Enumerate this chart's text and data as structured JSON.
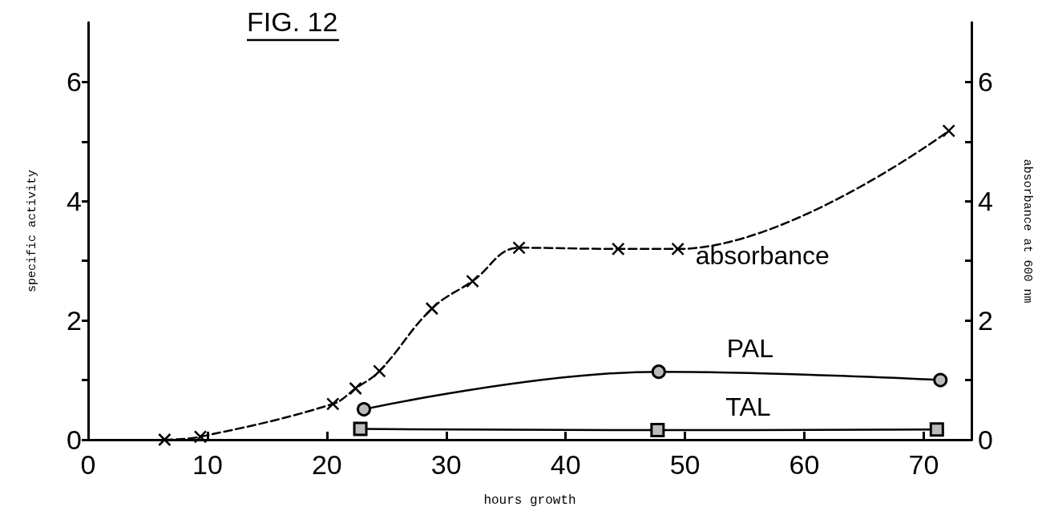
{
  "chart_data": {
    "type": "line",
    "title": "FIG. 12",
    "xlabel": "hours growth",
    "ylabel": "specific activity",
    "y2label": "absorbance at 600 nm",
    "xlim": [
      0,
      74
    ],
    "xticks": [
      0,
      10,
      20,
      30,
      40,
      50,
      60,
      70
    ],
    "ylim": [
      0,
      7
    ],
    "yticks": [
      0,
      {
        "value": 1,
        "label": null
      },
      2,
      {
        "value": 3,
        "label": null
      },
      4,
      {
        "value": 5,
        "label": null
      },
      6
    ],
    "y2lim": [
      0,
      7
    ],
    "y2ticks": [
      0,
      {
        "value": 1,
        "label": null
      },
      2,
      {
        "value": 3,
        "label": null
      },
      4,
      {
        "value": 5,
        "label": null
      },
      6
    ],
    "grid": false,
    "legend": false,
    "series": [
      {
        "name": "absorbance",
        "color": "#000000",
        "marker": "cross",
        "line_style": "dashed",
        "x": [
          6.4,
          9.4,
          20.5,
          22.4,
          24.4,
          28.8,
          32.2,
          36.1,
          44.4,
          49.4,
          72.1
        ],
        "values": [
          0.0,
          0.05,
          0.6,
          0.86,
          1.15,
          2.2,
          2.66,
          3.22,
          3.2,
          3.2,
          5.18
        ]
      },
      {
        "name": "PAL",
        "color": "#000000",
        "marker": "circle",
        "line_style": "solid",
        "x": [
          23.1,
          47.8,
          71.4
        ],
        "values": [
          0.51,
          1.14,
          1.0
        ]
      },
      {
        "name": "TAL",
        "color": "#000000",
        "marker": "square",
        "line_style": "solid",
        "x": [
          22.8,
          47.7,
          71.1
        ],
        "values": [
          0.18,
          0.16,
          0.17
        ]
      }
    ]
  }
}
